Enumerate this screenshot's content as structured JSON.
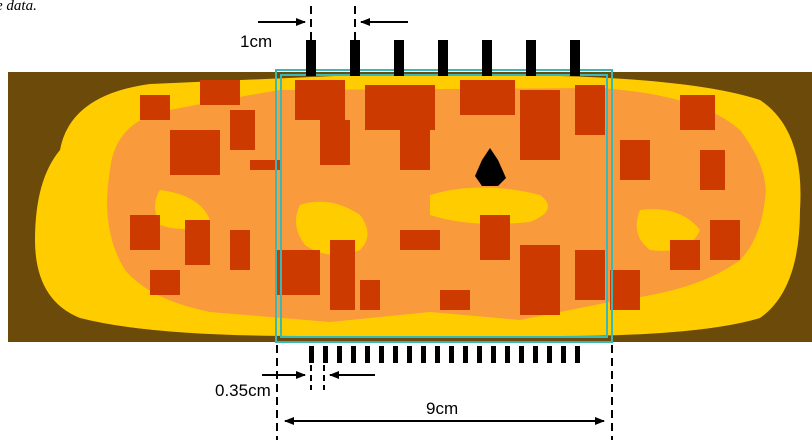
{
  "caption": "e data.",
  "labels": {
    "top_spacing": "1cm",
    "bottom_spacing": "0.35cm",
    "width": "9cm"
  }
}
